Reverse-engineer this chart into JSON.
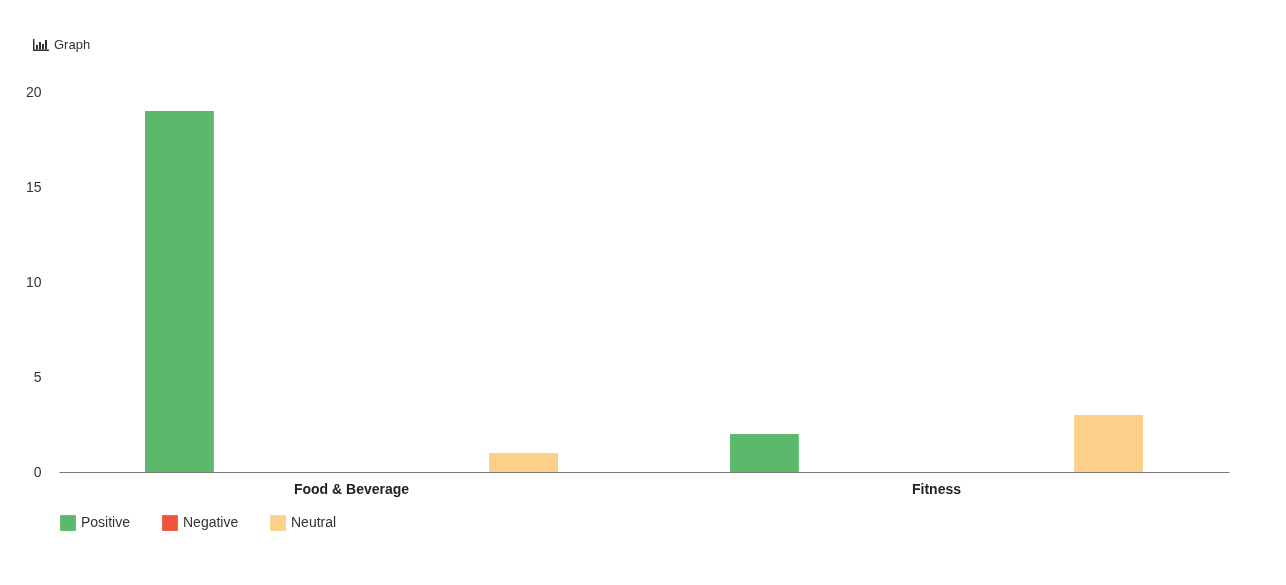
{
  "chart_data": {
    "type": "bar",
    "title": "Graph",
    "categories": [
      "Food & Beverage",
      "Fitness"
    ],
    "series": [
      {
        "name": "Positive",
        "color": "#5cb96b",
        "values": [
          19,
          2
        ]
      },
      {
        "name": "Negative",
        "color": "#f0553a",
        "values": [
          0,
          0
        ]
      },
      {
        "name": "Neutral",
        "color": "#fcd088",
        "values": [
          1,
          3
        ]
      }
    ],
    "ylim": [
      0,
      20
    ],
    "yticks": [
      0,
      5,
      10,
      15,
      20
    ],
    "legend": "bottom"
  }
}
